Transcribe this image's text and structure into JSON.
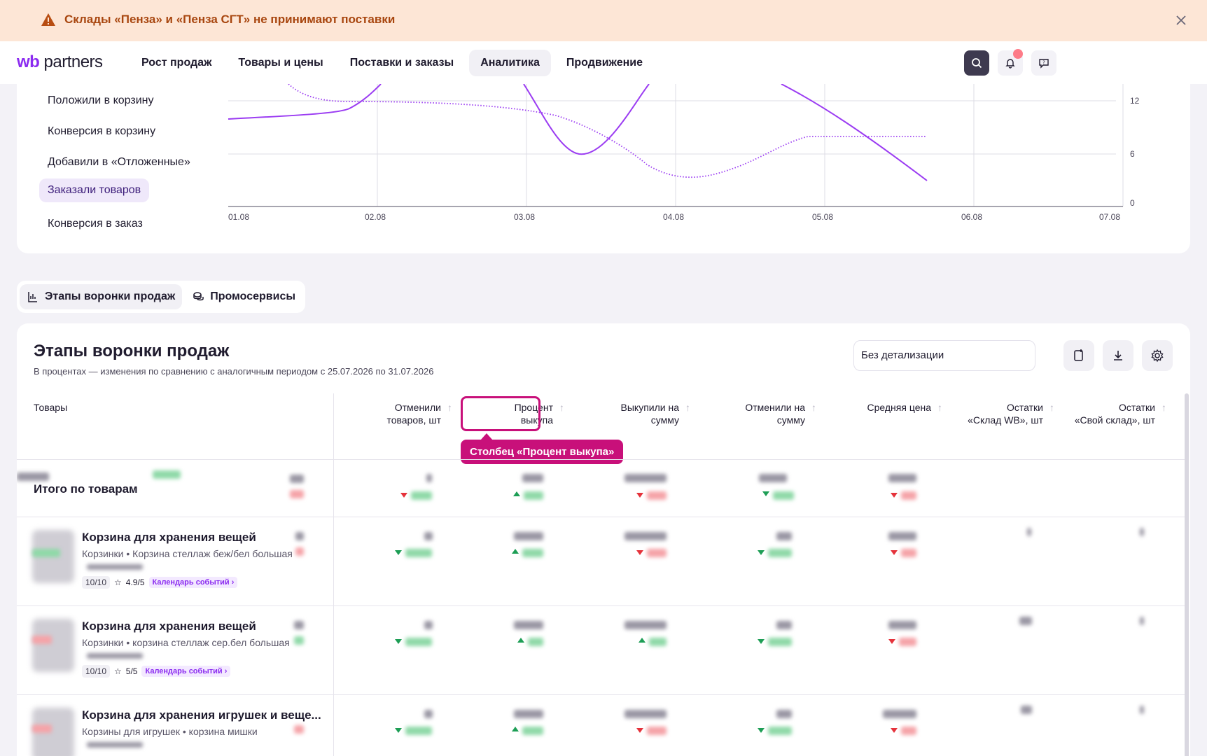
{
  "banner": {
    "text": "Склады «Пенза» и «Пенза СГТ» не принимают поставки",
    "icon": "warning-icon",
    "color": "#a8460f"
  },
  "header": {
    "logo_wb": "wb",
    "logo_partners": "partners",
    "nav": [
      "Рост продаж",
      "Товары и цены",
      "Поставки и заказы",
      "Аналитика",
      "Продвижение"
    ],
    "active_nav": "Аналитика"
  },
  "metrics": [
    "Положили в корзину",
    "Конверсия в корзину",
    "Добавили в «Отложенные»",
    "Заказали товаров",
    "Конверсия в заказ"
  ],
  "chart_data": {
    "type": "line",
    "x": [
      "01.08",
      "02.08",
      "03.08",
      "04.08",
      "05.08",
      "06.08",
      "07.08"
    ],
    "y_ticks": [
      0,
      6,
      12
    ],
    "series": [
      {
        "style": "solid",
        "color": "#9b3cf2"
      },
      {
        "style": "dotted",
        "color": "#9b3cf2"
      }
    ],
    "grid": true
  },
  "tabs": [
    {
      "label": "Этапы воронки продаж",
      "icon": "funnel-icon"
    },
    {
      "label": "Промосервисы",
      "icon": "coins-icon"
    }
  ],
  "table": {
    "title": "Этапы воронки продаж",
    "subtitle": "В процентах — изменения по сравнению с аналогичным периодом с 25.07.2026 по 31.07.2026",
    "detail_select": "Без детализации",
    "columns": {
      "products": "Товары",
      "cancelled_qty_1": "Отменили",
      "cancelled_qty_2": "товаров, шт",
      "buyout_pct_1": "Процент",
      "buyout_pct_2": "выкупа",
      "bought_sum_1": "Выкупили на",
      "bought_sum_2": "сумму",
      "cancelled_sum_1": "Отменили на",
      "cancelled_sum_2": "сумму",
      "avg_price": "Средняя цена",
      "stock_wb_1": "Остатки",
      "stock_wb_2": "«Склад WB», шт",
      "stock_own_1": "Остатки",
      "stock_own_2": "«Свой склад», шт"
    },
    "tooltip": "Столбец «Процент выкупа»",
    "total_label": "Итого по товарам",
    "products": [
      {
        "name": "Корзина для хранения вещей",
        "category": "Корзинки • Корзина стеллаж беж/бел большая",
        "rating_count": "10/10",
        "rating": "4.9/5",
        "calendar": "Календарь событий"
      },
      {
        "name": "Корзина для хранения вещей",
        "category": "Корзинки • корзина стеллаж сер.бел большая",
        "rating_count": "10/10",
        "rating": "5/5",
        "calendar": "Календарь событий"
      },
      {
        "name": "Корзина для хранения игрушек и веще...",
        "category": "Корзины для игрушек • корзина мишки"
      }
    ]
  }
}
